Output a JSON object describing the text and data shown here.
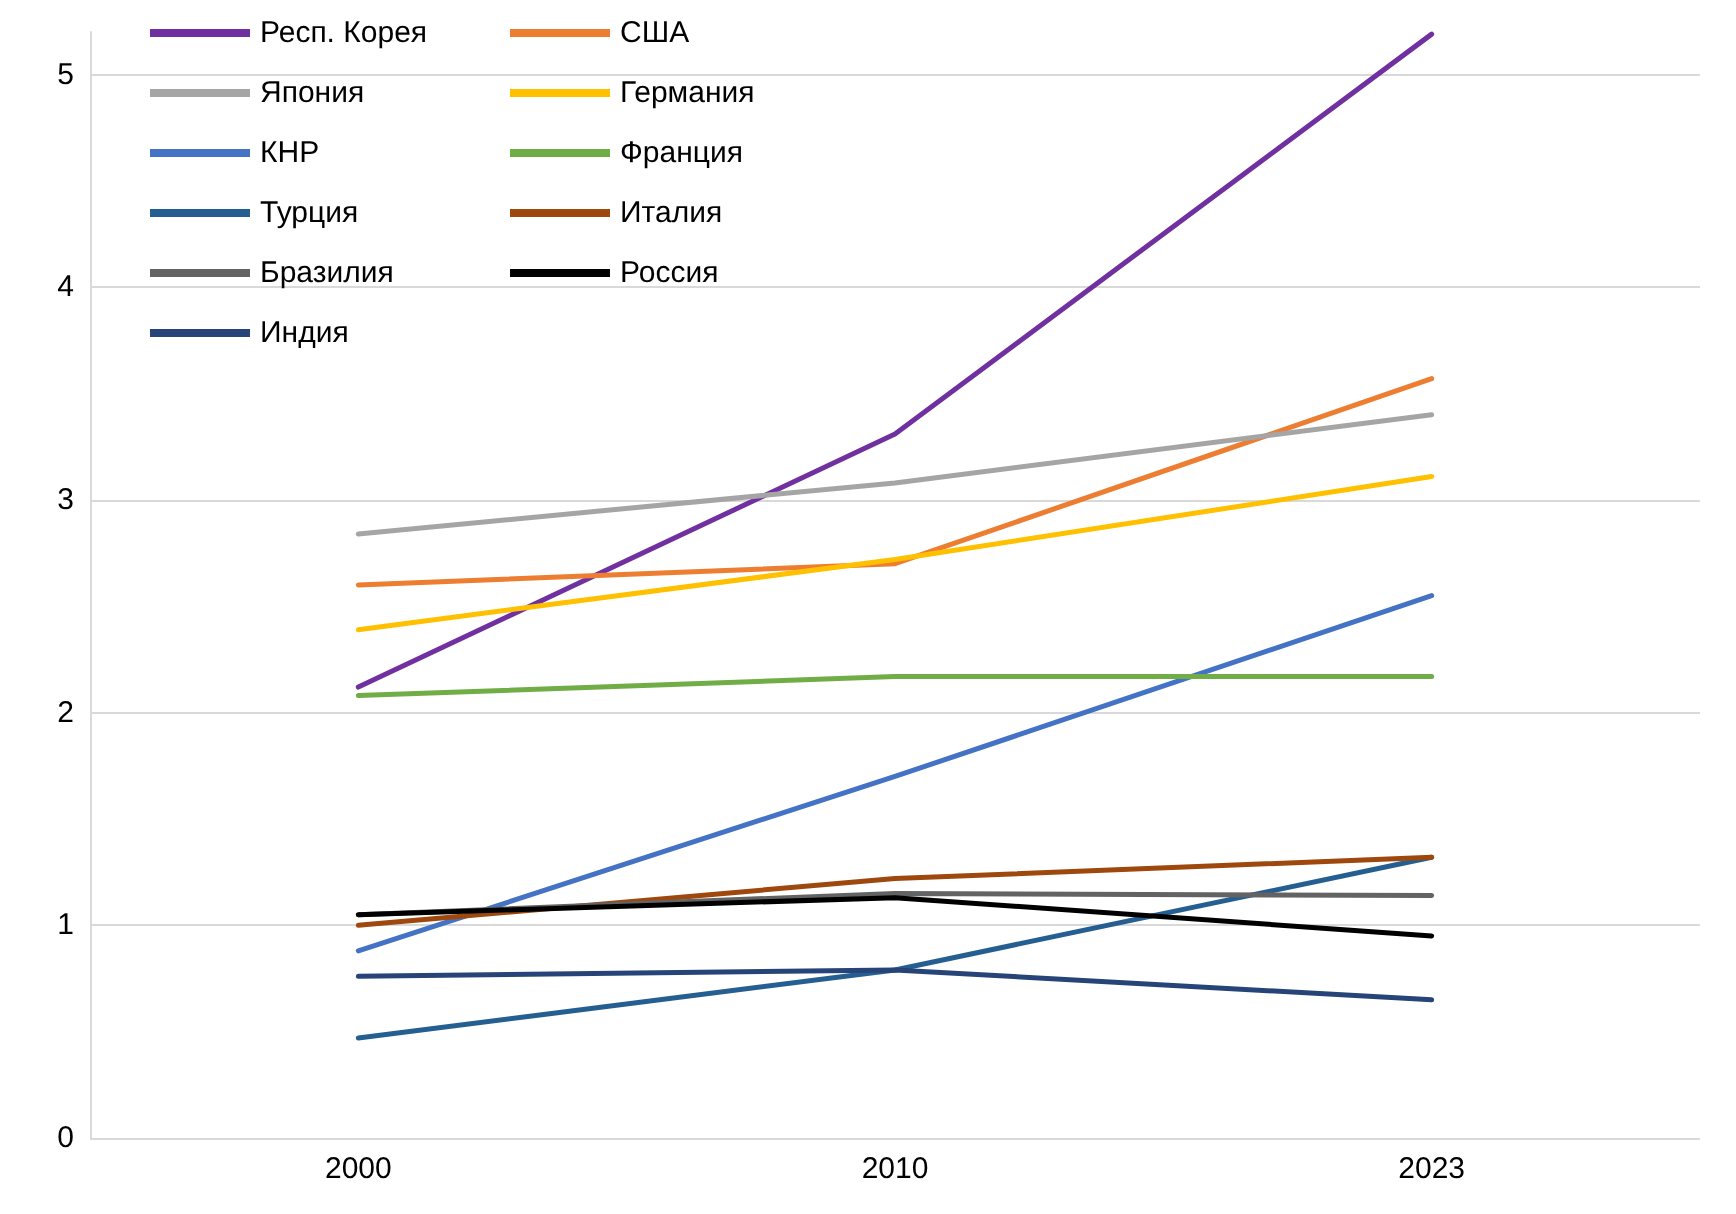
{
  "chart_data": {
    "type": "line",
    "categories": [
      "2000",
      "2010",
      "2023"
    ],
    "series": [
      {
        "name": "Респ. Корея",
        "color": "#7030a0",
        "values": [
          2.12,
          3.31,
          5.19
        ]
      },
      {
        "name": "США",
        "color": "#ed7d31",
        "values": [
          2.6,
          2.7,
          3.57
        ]
      },
      {
        "name": "Япония",
        "color": "#a5a5a5",
        "values": [
          2.84,
          3.08,
          3.4
        ]
      },
      {
        "name": "Германия",
        "color": "#ffc000",
        "values": [
          2.39,
          2.72,
          3.11
        ]
      },
      {
        "name": "КНР",
        "color": "#4472c4",
        "values": [
          0.88,
          1.7,
          2.55
        ]
      },
      {
        "name": "Франция",
        "color": "#70ad47",
        "values": [
          2.08,
          2.17,
          2.17
        ]
      },
      {
        "name": "Турция",
        "color": "#255e91",
        "values": [
          0.47,
          0.79,
          1.32
        ]
      },
      {
        "name": "Италия",
        "color": "#9e480e",
        "values": [
          1.0,
          1.22,
          1.32
        ]
      },
      {
        "name": "Бразилия",
        "color": "#636363",
        "values": [
          1.05,
          1.15,
          1.14
        ]
      },
      {
        "name": "Россия",
        "color": "#000000",
        "values": [
          1.05,
          1.13,
          0.95
        ]
      },
      {
        "name": "Индия",
        "color": "#264478",
        "values": [
          0.76,
          0.79,
          0.65
        ]
      }
    ],
    "ylim": [
      0,
      5.2
    ],
    "yticks": [
      0,
      1,
      2,
      3,
      4,
      5
    ],
    "grid": "y",
    "legend": "top left",
    "marker": "none",
    "line_style": "solid"
  }
}
